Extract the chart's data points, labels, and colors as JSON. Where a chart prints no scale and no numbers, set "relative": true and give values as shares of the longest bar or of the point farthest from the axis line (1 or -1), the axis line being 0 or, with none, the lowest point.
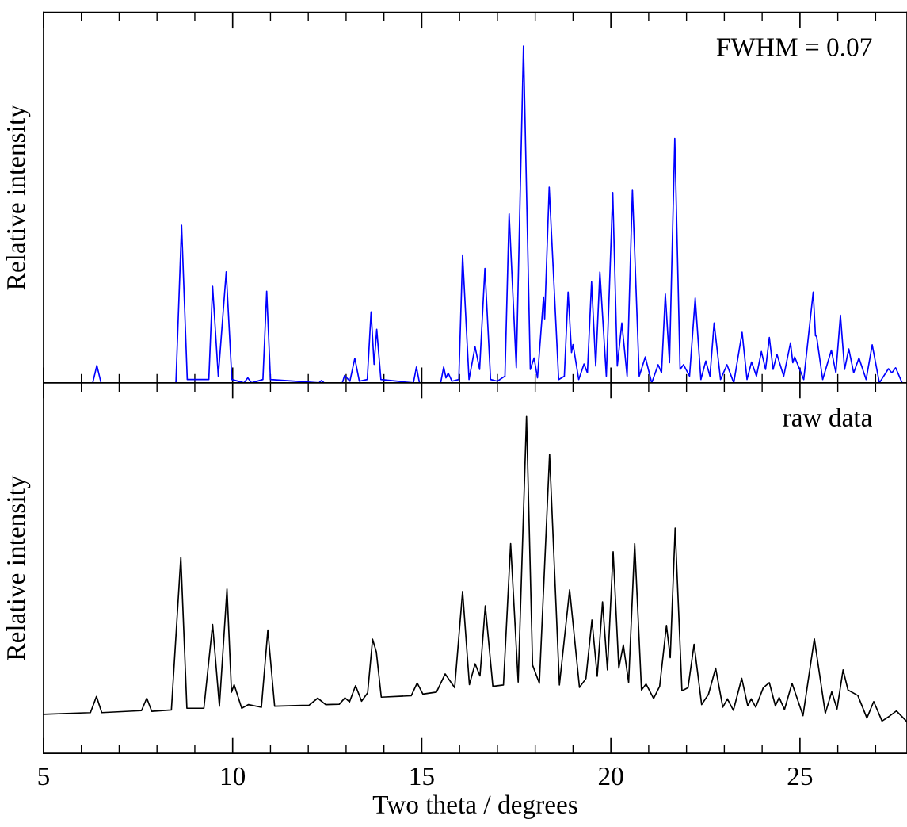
{
  "chart_data": [
    {
      "type": "line",
      "relative": true,
      "ylabel": "Relative intensity",
      "annotations": [
        "FWHM = 0.07"
      ],
      "xlim": [
        5,
        27.83
      ],
      "xticks": [
        5,
        10,
        15,
        20,
        25
      ],
      "tick_labels": false,
      "grid": false,
      "legend": false,
      "series": [
        {
          "color": "#0000ff",
          "x": [
            6.3,
            6.41,
            6.52,
            8.5,
            8.65,
            8.8,
            9.37,
            9.47,
            9.62,
            9.83,
            9.98,
            10.3,
            10.4,
            10.5,
            10.8,
            10.9,
            11.0,
            12.28,
            12.35,
            12.42,
            12.9,
            12.96,
            13.1,
            13.23,
            13.35,
            13.56,
            13.66,
            13.74,
            13.81,
            13.92,
            14.78,
            14.86,
            14.94,
            15.5,
            15.58,
            15.64,
            15.7,
            15.8,
            15.98,
            16.08,
            16.25,
            16.41,
            16.53,
            16.67,
            16.82,
            17.0,
            17.2,
            17.31,
            17.5,
            17.69,
            17.87,
            17.97,
            18.06,
            18.22,
            18.25,
            18.37,
            18.62,
            18.77,
            18.87,
            18.96,
            19.0,
            19.15,
            19.29,
            19.38,
            19.49,
            19.6,
            19.71,
            19.88,
            20.05,
            20.17,
            20.29,
            20.43,
            20.57,
            20.75,
            20.91,
            21.08,
            21.25,
            21.34,
            21.44,
            21.55,
            21.69,
            21.83,
            21.92,
            22.08,
            22.23,
            22.38,
            22.51,
            22.62,
            22.73,
            22.9,
            23.07,
            23.25,
            23.47,
            23.6,
            23.72,
            23.85,
            23.98,
            24.09,
            24.19,
            24.29,
            24.39,
            24.57,
            24.75,
            24.81,
            24.86,
            25.1,
            25.35,
            25.41,
            25.44,
            25.6,
            25.83,
            25.95,
            26.07,
            26.18,
            26.29,
            26.42,
            26.56,
            26.75,
            26.91,
            27.1,
            27.34,
            27.43,
            27.53,
            27.7
          ],
          "values": [
            0.0,
            0.052,
            0.0,
            0.0,
            0.468,
            0.01,
            0.01,
            0.287,
            0.02,
            0.33,
            0.01,
            0.0,
            0.015,
            0.0,
            0.01,
            0.272,
            0.01,
            0.0,
            0.007,
            0.0,
            0.0,
            0.022,
            0.005,
            0.073,
            0.005,
            0.01,
            0.211,
            0.055,
            0.159,
            0.01,
            0.0,
            0.047,
            0.0,
            0.0,
            0.047,
            0.015,
            0.029,
            0.005,
            0.01,
            0.38,
            0.01,
            0.107,
            0.04,
            0.34,
            0.01,
            0.005,
            0.02,
            0.502,
            0.045,
            1.0,
            0.04,
            0.074,
            0.015,
            0.255,
            0.19,
            0.581,
            0.01,
            0.02,
            0.27,
            0.09,
            0.114,
            0.01,
            0.056,
            0.03,
            0.3,
            0.05,
            0.329,
            0.02,
            0.565,
            0.05,
            0.178,
            0.02,
            0.574,
            0.02,
            0.077,
            0.0,
            0.054,
            0.03,
            0.264,
            0.06,
            0.726,
            0.04,
            0.054,
            0.02,
            0.252,
            0.01,
            0.065,
            0.02,
            0.178,
            0.01,
            0.054,
            0.0,
            0.15,
            0.01,
            0.062,
            0.02,
            0.093,
            0.04,
            0.135,
            0.04,
            0.085,
            0.02,
            0.119,
            0.06,
            0.077,
            0.01,
            0.27,
            0.14,
            0.138,
            0.01,
            0.097,
            0.03,
            0.201,
            0.04,
            0.101,
            0.03,
            0.074,
            0.01,
            0.113,
            0.0,
            0.042,
            0.03,
            0.045,
            0.0
          ]
        }
      ]
    },
    {
      "type": "line",
      "relative": true,
      "xlabel": "Two theta / degrees",
      "ylabel": "Relative intensity",
      "annotations": [
        "raw data"
      ],
      "xlim": [
        5,
        27.83
      ],
      "xticks": [
        5,
        10,
        15,
        20,
        25
      ],
      "tick_labels": "x",
      "grid": false,
      "legend": false,
      "series": [
        {
          "color": "#000000",
          "x": [
            5.0,
            6.24,
            6.4,
            6.54,
            7.59,
            7.73,
            7.86,
            8.38,
            8.63,
            8.79,
            9.24,
            9.47,
            9.65,
            9.85,
            9.97,
            10.04,
            10.24,
            10.42,
            10.76,
            10.93,
            11.11,
            12.02,
            12.25,
            12.46,
            12.82,
            12.97,
            13.09,
            13.25,
            13.41,
            13.57,
            13.7,
            13.8,
            13.93,
            14.72,
            14.88,
            15.03,
            15.39,
            15.62,
            15.87,
            16.08,
            16.26,
            16.41,
            16.54,
            16.68,
            16.88,
            17.16,
            17.35,
            17.55,
            17.77,
            17.93,
            18.11,
            18.38,
            18.64,
            18.91,
            19.17,
            19.34,
            19.5,
            19.64,
            19.78,
            19.91,
            20.06,
            20.21,
            20.33,
            20.47,
            20.63,
            20.81,
            20.93,
            21.13,
            21.29,
            21.47,
            21.57,
            21.7,
            21.88,
            22.04,
            22.2,
            22.4,
            22.58,
            22.77,
            22.96,
            23.08,
            23.24,
            23.46,
            23.62,
            23.71,
            23.83,
            24.03,
            24.19,
            24.35,
            24.45,
            24.59,
            24.79,
            25.08,
            25.38,
            25.67,
            25.84,
            25.98,
            26.14,
            26.27,
            26.53,
            26.77,
            26.95,
            27.17,
            27.36,
            27.55,
            27.83
          ],
          "values": [
            0.116,
            0.121,
            0.169,
            0.121,
            0.127,
            0.164,
            0.125,
            0.129,
            0.583,
            0.134,
            0.134,
            0.383,
            0.14,
            0.488,
            0.182,
            0.204,
            0.134,
            0.145,
            0.137,
            0.366,
            0.14,
            0.143,
            0.164,
            0.145,
            0.146,
            0.165,
            0.153,
            0.201,
            0.155,
            0.18,
            0.339,
            0.301,
            0.167,
            0.171,
            0.209,
            0.176,
            0.182,
            0.236,
            0.195,
            0.481,
            0.204,
            0.266,
            0.23,
            0.438,
            0.199,
            0.203,
            0.623,
            0.212,
            1.0,
            0.262,
            0.208,
            0.888,
            0.203,
            0.486,
            0.196,
            0.222,
            0.396,
            0.229,
            0.45,
            0.248,
            0.599,
            0.253,
            0.322,
            0.211,
            0.623,
            0.188,
            0.206,
            0.163,
            0.199,
            0.38,
            0.284,
            0.669,
            0.186,
            0.195,
            0.324,
            0.145,
            0.175,
            0.253,
            0.137,
            0.162,
            0.128,
            0.223,
            0.141,
            0.162,
            0.137,
            0.195,
            0.21,
            0.141,
            0.166,
            0.13,
            0.208,
            0.112,
            0.34,
            0.119,
            0.183,
            0.132,
            0.248,
            0.188,
            0.172,
            0.105,
            0.154,
            0.096,
            0.11,
            0.126,
            0.094
          ]
        }
      ]
    }
  ]
}
